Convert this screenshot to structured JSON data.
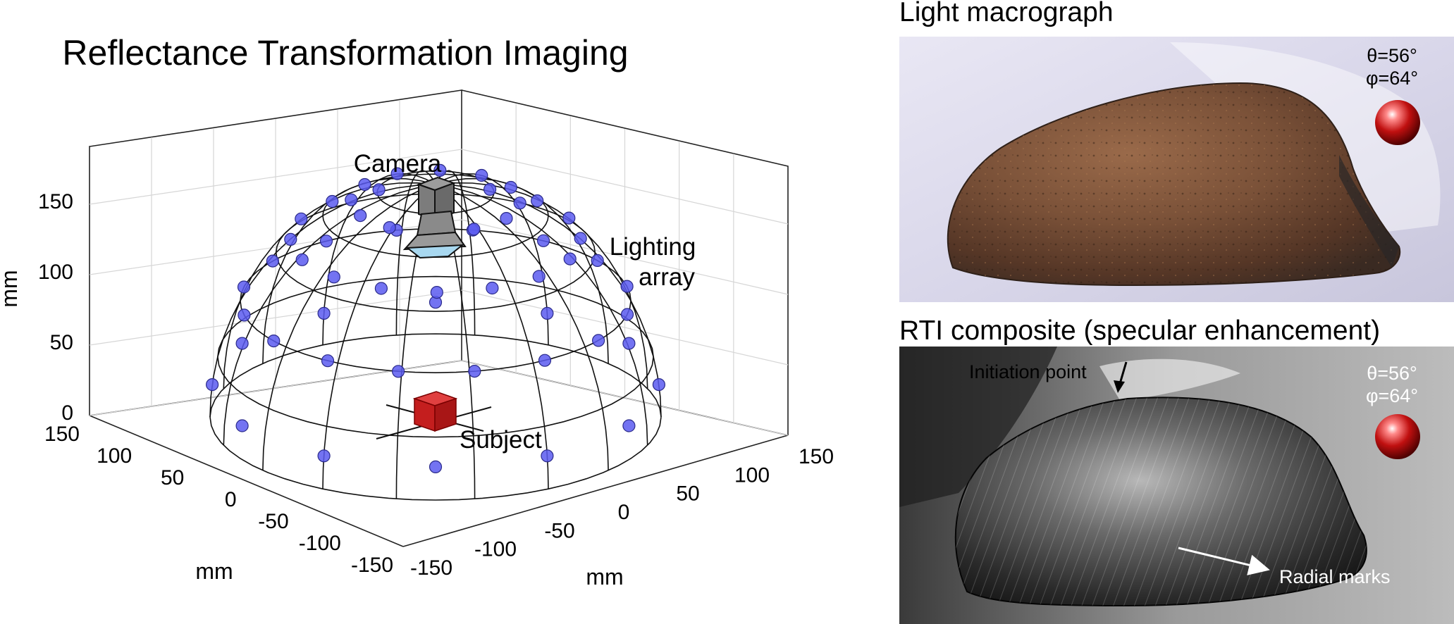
{
  "rti_diagram": {
    "title": "Reflectance Transformation Imaging",
    "camera_label": "Camera",
    "lighting_label_line1": "Lighting",
    "lighting_label_line2": "array",
    "subject_label": "Subject",
    "z_axis_label": "mm",
    "x_axis_label": "mm",
    "y_axis_label": "mm",
    "z_ticks": [
      "0",
      "50",
      "100",
      "150"
    ],
    "x_ticks": [
      "150",
      "100",
      "50",
      "0",
      "-50",
      "-100",
      "-150"
    ],
    "y_ticks": [
      "-150",
      "-100",
      "-50",
      "0",
      "50",
      "100",
      "150"
    ],
    "colors": {
      "light_points": "#5b5bf0",
      "subject_cube": "#d42a2a",
      "camera_body": "#8c8c8c",
      "camera_lens": "#a8d8f0",
      "wireframe": "#111111",
      "grid": "#d6d6d6"
    }
  },
  "panel_top": {
    "title": "Light macrograph",
    "theta": "θ=56°",
    "phi": "φ=64°",
    "sphere_icon": "lighting-direction-sphere"
  },
  "panel_bottom": {
    "title": "RTI composite (specular enhancement)",
    "theta": "θ=56°",
    "phi": "φ=64°",
    "annotation_initiation": "Initiation point",
    "annotation_radial": "Radial marks",
    "sphere_icon": "lighting-direction-sphere"
  }
}
